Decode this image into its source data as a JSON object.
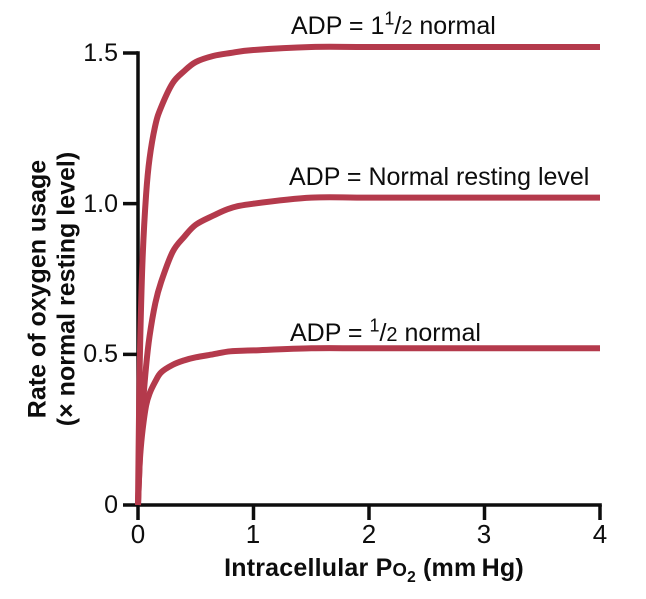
{
  "figure": {
    "background": "#ffffff",
    "curve_color": "#b43a4c",
    "axis_color": "#0d0d0d"
  },
  "y_axis": {
    "title_line1": "Rate of oxygen usage",
    "title_line2": "(× normal resting level)",
    "tick_labels": [
      "1.5",
      "1.0",
      "0.5",
      "0"
    ]
  },
  "x_axis": {
    "title_pre": "Intracellular P",
    "title_o": "O",
    "title_sub": "2",
    "title_post": " (mm Hg)",
    "tick_labels": [
      "0",
      "1",
      "2",
      "3",
      "4"
    ]
  },
  "curve_labels": [
    {
      "pre": "ADP = 1",
      "num": "1",
      "slash": "/",
      "den": "2",
      "post": " normal"
    },
    {
      "pre": "ADP = Normal resting level"
    },
    {
      "pre": "ADP = ",
      "num": "1",
      "slash": "/",
      "den": "2",
      "post": " normal"
    }
  ],
  "chart_data": {
    "type": "line",
    "title": "",
    "xlabel": "Intracellular Po2 (mm Hg)",
    "ylabel": "Rate of oxygen usage (× normal resting level)",
    "xlim": [
      0,
      4
    ],
    "ylim": [
      0,
      1.5
    ],
    "xticks": [
      0,
      1,
      2,
      3,
      4
    ],
    "yticks": [
      0,
      0.5,
      1.0,
      1.5
    ],
    "grid": false,
    "legend_position": "inline-labels",
    "curve_color": "#b43a4c",
    "x": [
      0,
      0.01,
      0.02,
      0.04,
      0.07,
      0.1,
      0.15,
      0.2,
      0.3,
      0.4,
      0.5,
      0.65,
      0.8,
      1.0,
      1.5,
      2.0,
      3.0,
      4.0
    ],
    "series": [
      {
        "name": "ADP = 1 1/2 normal",
        "plateau": 1.52,
        "y": [
          0,
          0.34,
          0.56,
          0.82,
          1.03,
          1.15,
          1.26,
          1.32,
          1.4,
          1.44,
          1.47,
          1.49,
          1.5,
          1.51,
          1.52,
          1.52,
          1.52,
          1.52
        ]
      },
      {
        "name": "ADP = Normal resting level",
        "plateau": 1.02,
        "y": [
          0,
          0.1,
          0.19,
          0.32,
          0.46,
          0.56,
          0.67,
          0.74,
          0.84,
          0.89,
          0.93,
          0.96,
          0.985,
          1.0,
          1.02,
          1.02,
          1.02,
          1.02
        ]
      },
      {
        "name": "ADP = 1/2 normal",
        "plateau": 0.52,
        "y": [
          0,
          0.1,
          0.17,
          0.25,
          0.33,
          0.37,
          0.41,
          0.44,
          0.465,
          0.48,
          0.49,
          0.5,
          0.51,
          0.513,
          0.52,
          0.52,
          0.52,
          0.52
        ]
      }
    ]
  }
}
